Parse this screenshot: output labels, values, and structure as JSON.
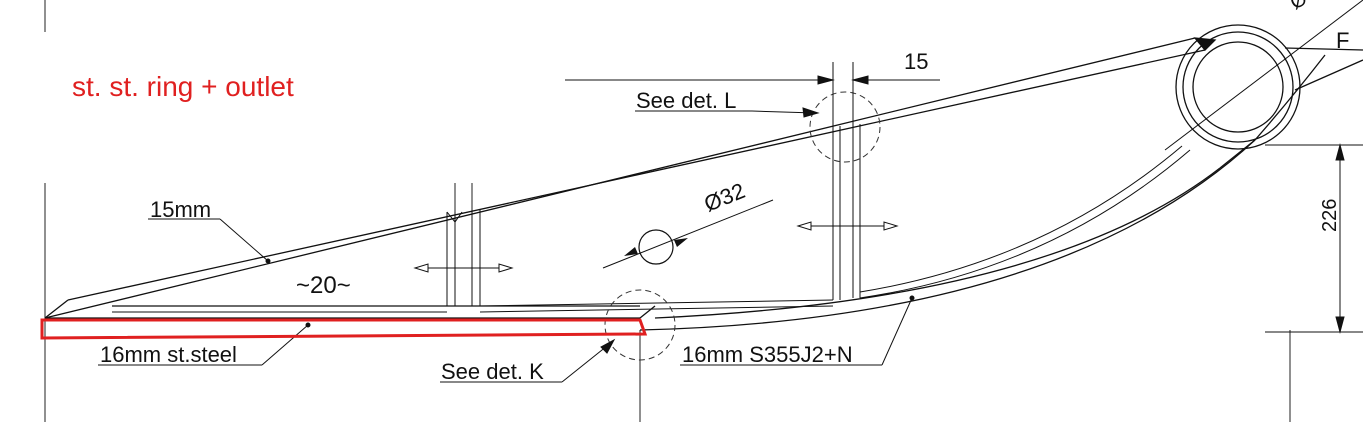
{
  "annotations": {
    "title": "st. st. ring + outlet",
    "see_det_l": "See det. L",
    "see_det_k": "See det. K",
    "thickness_top": "15mm",
    "thickness_bottom_left": "16mm st.steel",
    "thickness_bottom_right": "16mm S355J2+N",
    "pitch": "~20~",
    "hole_dia": "Ø32",
    "dim_15": "15",
    "dim_226": "226",
    "ring_dia": "Ø",
    "label_f": "F"
  },
  "colors": {
    "highlight": "#e02020",
    "line": "#111111",
    "background": "#ffffff"
  }
}
